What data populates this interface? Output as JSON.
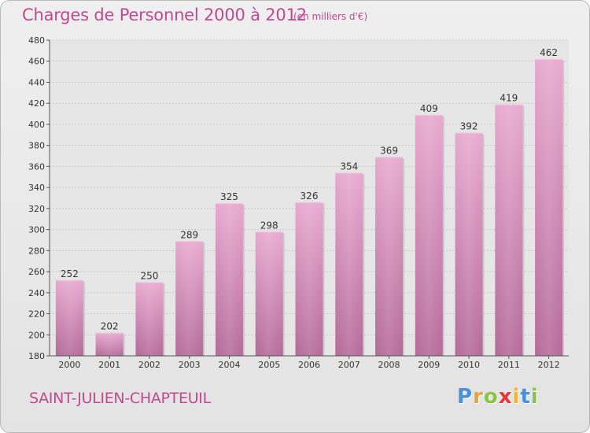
{
  "header": {
    "title": "Charges de Personnel 2000 à 2012",
    "subtitle": "(en milliers d'€)"
  },
  "footer": {
    "commune": "SAINT-JULIEN-CHAPTEUIL",
    "logo_letters": [
      "P",
      "r",
      "o",
      "x",
      "i",
      "t",
      "i"
    ],
    "logo_colors": [
      "#4a90d9",
      "#e8a33c",
      "#8bc34a",
      "#e53935",
      "#f6b42a",
      "#4a90d9",
      "#8bc34a"
    ]
  },
  "chart_data": {
    "type": "bar",
    "categories": [
      "2000",
      "2001",
      "2002",
      "2003",
      "2004",
      "2005",
      "2006",
      "2007",
      "2008",
      "2009",
      "2010",
      "2011",
      "2012"
    ],
    "values": [
      252,
      202,
      250,
      289,
      325,
      298,
      326,
      354,
      369,
      409,
      392,
      419,
      462
    ],
    "ylim": [
      180,
      480
    ],
    "yticks": [
      180,
      200,
      220,
      240,
      260,
      280,
      300,
      320,
      340,
      360,
      380,
      400,
      420,
      440,
      460,
      480
    ],
    "grid": true,
    "bar_color": "#d48fba",
    "label_color": "#333333"
  }
}
